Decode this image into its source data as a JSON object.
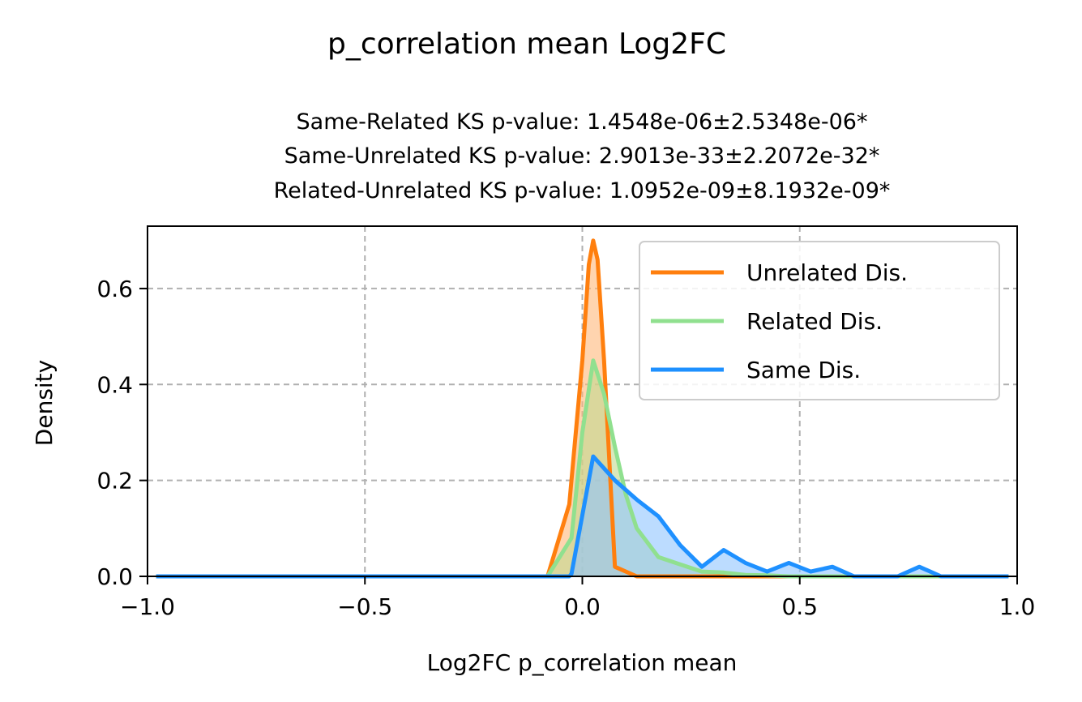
{
  "chart_data": {
    "type": "area",
    "suptitle": "p_correlation mean Log2FC",
    "title_lines": [
      "Same-Related KS p-value: 1.4548e-06±2.5348e-06*",
      "Same-Unrelated KS p-value: 2.9013e-33±2.2072e-32*",
      "Related-Unrelated KS p-value: 1.0952e-09±8.1932e-09*"
    ],
    "xlabel": "Log2FC p_correlation mean",
    "ylabel": "Density",
    "xlim": [
      -1.0,
      1.0
    ],
    "ylim": [
      0.0,
      0.73
    ],
    "xticks": [
      -1.0,
      -0.5,
      0.0,
      0.5,
      1.0
    ],
    "xtick_labels": [
      "−1.0",
      "−0.5",
      "0.0",
      "0.5",
      "1.0"
    ],
    "yticks": [
      0.0,
      0.2,
      0.4,
      0.6
    ],
    "ytick_labels": [
      "0.0",
      "0.2",
      "0.4",
      "0.6"
    ],
    "grid": true,
    "legend_position": "top-right",
    "series": [
      {
        "name": "Unrelated Dis.",
        "color": "#ff7f0e",
        "fill": "#ffb87a",
        "x": [
          -0.98,
          -0.08,
          -0.03,
          0.0,
          0.015,
          0.025,
          0.035,
          0.05,
          0.075,
          0.125,
          0.175,
          0.225,
          0.3,
          0.5,
          0.98
        ],
        "y": [
          0.0,
          0.0,
          0.15,
          0.45,
          0.65,
          0.7,
          0.66,
          0.45,
          0.02,
          0.0,
          0.0,
          0.0,
          0.0,
          0.0,
          0.0
        ]
      },
      {
        "name": "Related Dis.",
        "color": "#90e08f",
        "fill": "#c2d98f",
        "x": [
          -0.98,
          -0.08,
          -0.025,
          0.0,
          0.025,
          0.05,
          0.075,
          0.1,
          0.125,
          0.175,
          0.225,
          0.275,
          0.325,
          0.375,
          0.425,
          0.475,
          0.98
        ],
        "y": [
          0.0,
          0.0,
          0.08,
          0.3,
          0.45,
          0.38,
          0.27,
          0.17,
          0.1,
          0.04,
          0.025,
          0.01,
          0.008,
          0.003,
          0.002,
          0.0,
          0.0
        ]
      },
      {
        "name": "Same Dis.",
        "color": "#1e90ff",
        "fill": "#8fc4ff",
        "x": [
          -0.98,
          -0.03,
          -0.025,
          0.025,
          0.075,
          0.125,
          0.175,
          0.225,
          0.275,
          0.325,
          0.375,
          0.425,
          0.475,
          0.525,
          0.575,
          0.625,
          0.675,
          0.725,
          0.775,
          0.825,
          0.98
        ],
        "y": [
          0.0,
          0.0,
          0.005,
          0.25,
          0.2,
          0.16,
          0.125,
          0.065,
          0.02,
          0.055,
          0.028,
          0.01,
          0.028,
          0.01,
          0.02,
          0.0,
          0.0,
          0.0,
          0.02,
          0.0,
          0.0
        ]
      }
    ]
  }
}
